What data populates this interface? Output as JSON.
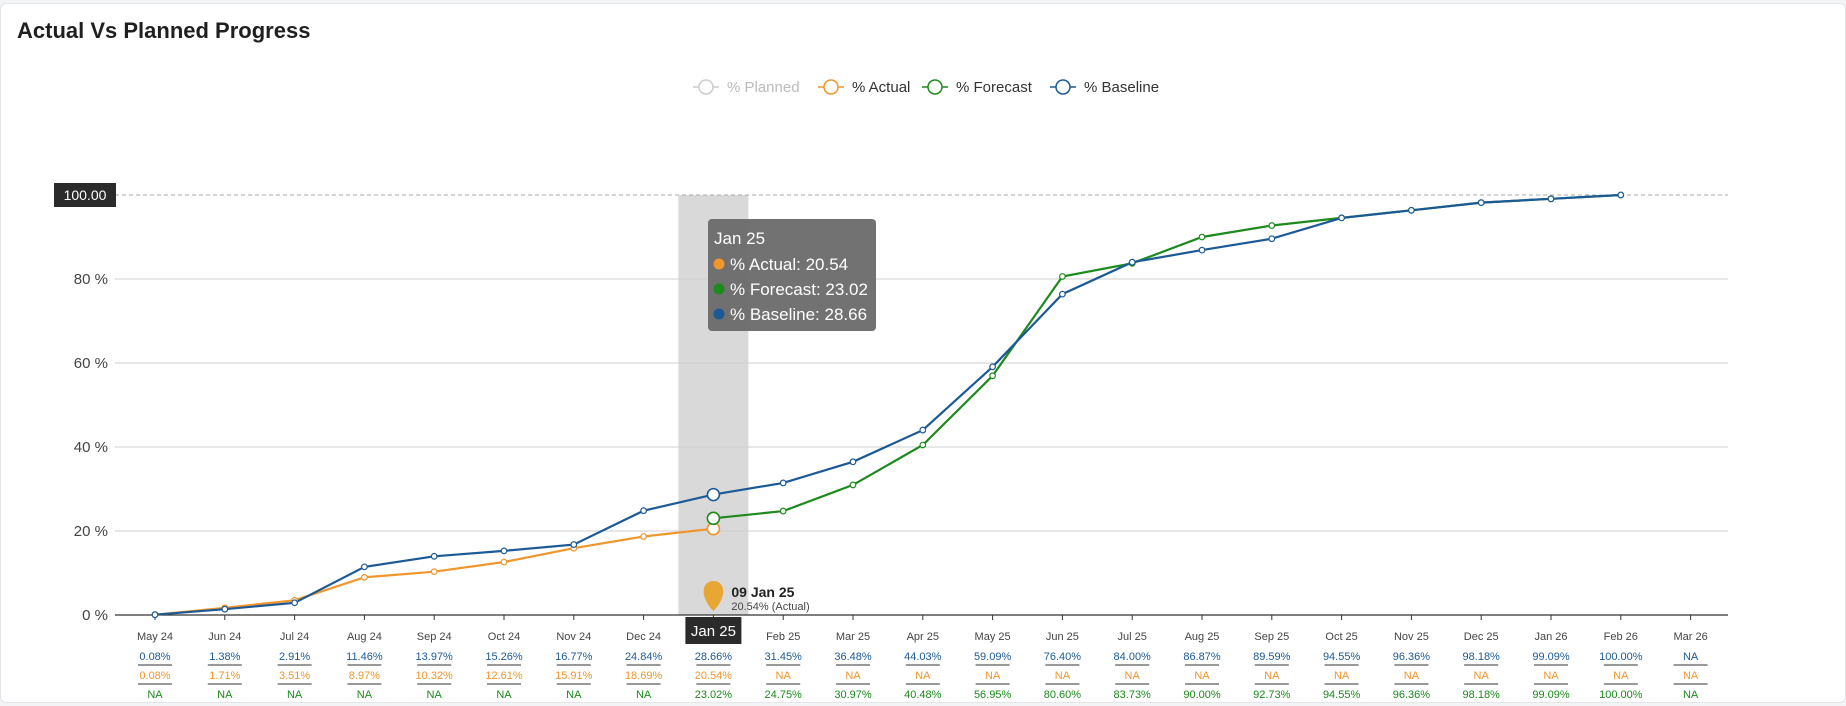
{
  "page": {
    "title": "Actual Vs Planned Progress"
  },
  "colors": {
    "planned": "#cccccc",
    "actual": "#f0962c",
    "forecast": "#1c8a1c",
    "baseline": "#1c5a96",
    "grid": "#cfcfcf",
    "highlight_band": "#d9d9d9",
    "tooltip_bg": "#6a6a6a",
    "marker": "#e8a735"
  },
  "legend": [
    {
      "key": "planned",
      "label": "% Planned",
      "dimmed": true
    },
    {
      "key": "actual",
      "label": "% Actual",
      "dimmed": false
    },
    {
      "key": "forecast",
      "label": "% Forecast",
      "dimmed": false
    },
    {
      "key": "baseline",
      "label": "% Baseline",
      "dimmed": false
    }
  ],
  "max_label": "100.00",
  "tooltip": {
    "title": "Jan 25",
    "rows": [
      {
        "series": "actual",
        "text": "% Actual: 20.54"
      },
      {
        "series": "forecast",
        "text": "% Forecast: 23.02"
      },
      {
        "series": "baseline",
        "text": "% Baseline: 28.66"
      }
    ]
  },
  "data_date": {
    "title": "09 Jan 25",
    "subtitle": "20.54% (Actual)",
    "axis_badge": "Jan 25"
  },
  "chart_data": {
    "type": "line",
    "categories": [
      "May 24",
      "Jun 24",
      "Jul 24",
      "Aug 24",
      "Sep 24",
      "Oct 24",
      "Nov 24",
      "Dec 24",
      "Jan 25",
      "Feb 25",
      "Mar 25",
      "Apr 25",
      "May 25",
      "Jun 25",
      "Jul 25",
      "Aug 25",
      "Sep 25",
      "Oct 25",
      "Nov 25",
      "Dec 25",
      "Jan 26",
      "Feb 26",
      "Mar 26"
    ],
    "yticks": [
      "0 %",
      "20 %",
      "40 %",
      "60 %",
      "80 %"
    ],
    "ylim": [
      0,
      100
    ],
    "highlight_category": "Jan 25",
    "series": [
      {
        "name": "% Baseline",
        "key": "baseline",
        "values": [
          0.08,
          1.38,
          2.91,
          11.46,
          13.97,
          15.26,
          16.77,
          24.84,
          28.66,
          31.45,
          36.48,
          44.03,
          59.09,
          76.4,
          84.0,
          86.87,
          89.59,
          94.55,
          96.36,
          98.18,
          99.09,
          100.0,
          null
        ],
        "labels": [
          "0.08%",
          "1.38%",
          "2.91%",
          "11.46%",
          "13.97%",
          "15.26%",
          "16.77%",
          "24.84%",
          "28.66%",
          "31.45%",
          "36.48%",
          "44.03%",
          "59.09%",
          "76.40%",
          "84.00%",
          "86.87%",
          "89.59%",
          "94.55%",
          "96.36%",
          "98.18%",
          "99.09%",
          "100.00%",
          "NA"
        ]
      },
      {
        "name": "% Actual",
        "key": "actual",
        "values": [
          0.08,
          1.71,
          3.51,
          8.97,
          10.32,
          12.61,
          15.91,
          18.69,
          20.54,
          null,
          null,
          null,
          null,
          null,
          null,
          null,
          null,
          null,
          null,
          null,
          null,
          null,
          null
        ],
        "labels": [
          "0.08%",
          "1.71%",
          "3.51%",
          "8.97%",
          "10.32%",
          "12.61%",
          "15.91%",
          "18.69%",
          "20.54%",
          "NA",
          "NA",
          "NA",
          "NA",
          "NA",
          "NA",
          "NA",
          "NA",
          "NA",
          "NA",
          "NA",
          "NA",
          "NA",
          "NA"
        ]
      },
      {
        "name": "% Forecast",
        "key": "forecast",
        "values": [
          null,
          null,
          null,
          null,
          null,
          null,
          null,
          null,
          23.02,
          24.75,
          30.97,
          40.48,
          56.95,
          80.6,
          83.73,
          90.0,
          92.73,
          94.55,
          96.36,
          98.18,
          99.09,
          100.0,
          null
        ],
        "labels": [
          "NA",
          "NA",
          "NA",
          "NA",
          "NA",
          "NA",
          "NA",
          "NA",
          "23.02%",
          "24.75%",
          "30.97%",
          "40.48%",
          "56.95%",
          "80.60%",
          "83.73%",
          "90.00%",
          "92.73%",
          "94.55%",
          "96.36%",
          "98.18%",
          "99.09%",
          "100.00%",
          "NA"
        ]
      }
    ]
  }
}
